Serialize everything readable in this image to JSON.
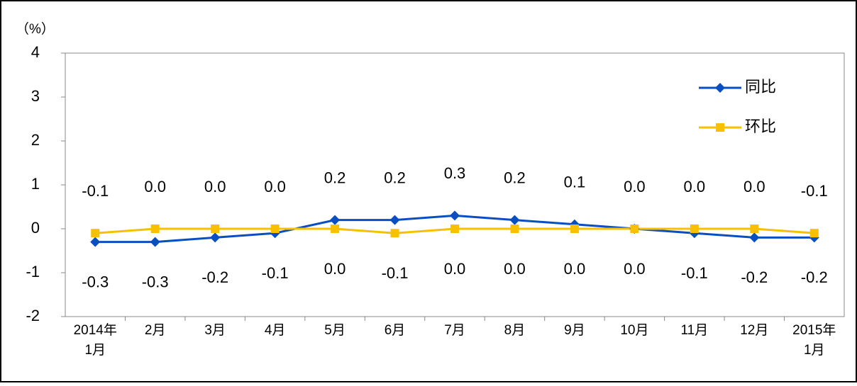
{
  "chart_data": {
    "type": "line",
    "y_unit_label": "（%）",
    "categories": [
      "2014年\n1月",
      "2月",
      "3月",
      "4月",
      "5月",
      "6月",
      "7月",
      "8月",
      "9月",
      "10月",
      "11月",
      "12月",
      "2015年\n1月"
    ],
    "series": [
      {
        "name": "同比",
        "color": "#0a4fc2",
        "marker": "diamond",
        "values": [
          -0.3,
          -0.3,
          -0.2,
          -0.1,
          0.2,
          0.2,
          0.3,
          0.2,
          0.1,
          0.0,
          -0.1,
          -0.2,
          -0.2
        ],
        "value_labels": [
          "-0.3",
          "-0.3",
          "-0.2",
          "-0.1",
          "0.2",
          "0.2",
          "0.3",
          "0.2",
          "0.1",
          "0.0",
          "-0.1",
          "-0.2",
          "-0.2"
        ]
      },
      {
        "name": "环比",
        "color": "#f8c000",
        "marker": "square",
        "values": [
          -0.1,
          0.0,
          0.0,
          0.0,
          0.0,
          -0.1,
          0.0,
          0.0,
          0.0,
          0.0,
          0.0,
          0.0,
          -0.1
        ],
        "value_labels": [
          "-0.1",
          "0.0",
          "0.0",
          "0.0",
          "0.0",
          "-0.1",
          "0.0",
          "0.0",
          "0.0",
          "0.0",
          "0.0",
          "0.0",
          "-0.1"
        ]
      }
    ],
    "ylim": [
      -2,
      4
    ],
    "yticks": [
      -2,
      -1,
      0,
      1,
      2,
      3,
      4
    ],
    "legend": "top-right"
  }
}
